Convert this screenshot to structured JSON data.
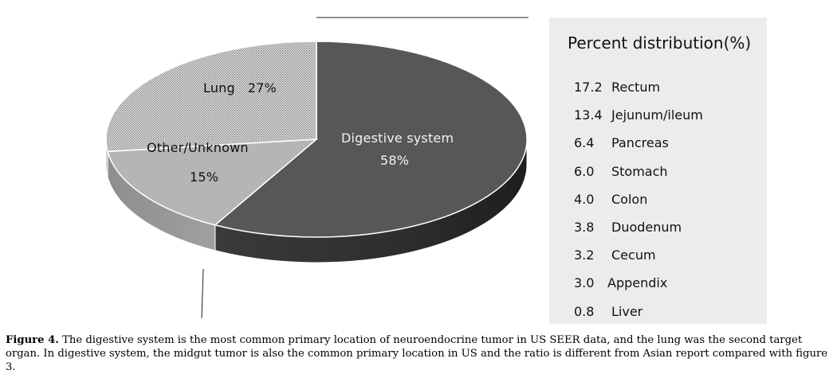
{
  "chart_data": [
    {
      "type": "pie",
      "style": "3d",
      "slices": [
        {
          "label": "Digestive system",
          "value": 58,
          "value_label": "58%",
          "color": "#575757"
        },
        {
          "label": "Other/Unknown",
          "value": 15,
          "value_label": "15%",
          "color": "#b5b5b5"
        },
        {
          "label": "Lung",
          "value": 27,
          "value_label": "27%",
          "color": "#d4d4d4",
          "pattern": "dotted"
        }
      ]
    },
    {
      "type": "table",
      "title": "Percent distribution(%)",
      "rows": [
        {
          "value": "17.2",
          "label": "Rectum"
        },
        {
          "value": "13.4",
          "label": "Jejunum/ileum"
        },
        {
          "value": "6.4",
          "label": "Pancreas"
        },
        {
          "value": "6.0",
          "label": "Stomach"
        },
        {
          "value": "4.0",
          "label": "Colon"
        },
        {
          "value": "3.8",
          "label": "Duodenum"
        },
        {
          "value": "3.2",
          "label": "Cecum"
        },
        {
          "value": "3.0",
          "label": "Appendix"
        },
        {
          "value": "0.8",
          "label": "Liver"
        }
      ]
    }
  ],
  "caption": {
    "label": "Figure 4.",
    "text": " The digestive system is the most common primary location of neuroendocrine tumor in US SEER data, and the lung was the second target organ. In digestive system, the midgut tumor is also the common primary location in US and the ratio is different from Asian report compared with figure 3."
  }
}
